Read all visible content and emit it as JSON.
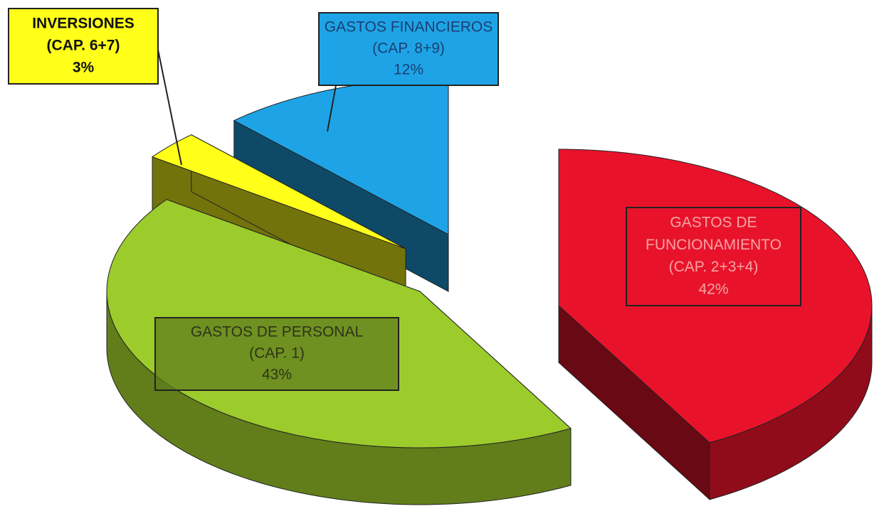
{
  "chart_data": {
    "type": "pie",
    "categories": [
      [
        "GASTOS DE",
        "FUNCIONAMIENTO",
        "(CAP. 2+3+4)"
      ],
      [
        "GASTOS DE PERSONAL",
        "(CAP. 1)"
      ],
      [
        "INVERSIONES",
        "(CAP. 6+7)"
      ],
      [
        "GASTOS FINANCIEROS",
        "(CAP. 8+9)"
      ]
    ],
    "values": [
      42,
      43,
      3,
      12
    ],
    "value_labels": [
      "42%",
      "43%",
      "3%",
      "12%"
    ],
    "colors": [
      "#e8132b",
      "#9ccb2c",
      "#ffff1a",
      "#1ea4e6"
    ]
  }
}
